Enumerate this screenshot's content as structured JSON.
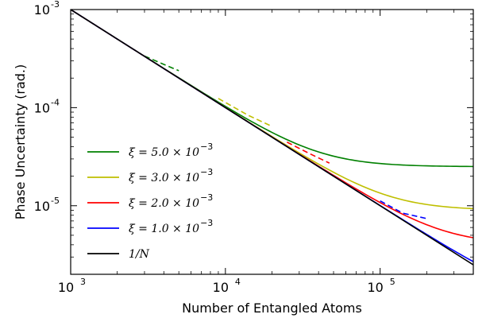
{
  "chart_data": {
    "type": "line",
    "xlabel": "Number of Entangled Atoms",
    "ylabel": "Phase Uncertainty (rad.)",
    "xscale": "log",
    "yscale": "log",
    "xlim": [
      1000,
      400000
    ],
    "ylim": [
      2e-06,
      0.001
    ],
    "x_ticks": [
      {
        "value": 1000,
        "base": "10",
        "exp": "3"
      },
      {
        "value": 10000,
        "base": "10",
        "exp": "4"
      },
      {
        "value": 100000,
        "base": "10",
        "exp": "5"
      }
    ],
    "y_ticks": [
      {
        "value": 0.001,
        "base": "10",
        "exp": "-3"
      },
      {
        "value": 0.0001,
        "base": "10",
        "exp": "-4"
      },
      {
        "value": 1e-05,
        "base": "10",
        "exp": "-5"
      }
    ],
    "grid": false,
    "legend_position": "lower-left",
    "series": [
      {
        "name": "ξ = 5.0 × 10⁻³",
        "label_main": "ξ = 5.0 × 10",
        "label_exp": "−3",
        "color": "#008000",
        "xi": 0.005,
        "x": [
          1000,
          2000,
          4000,
          8000,
          16000,
          32000,
          64000,
          128000,
          256000,
          400000
        ],
        "y": [
          0.001,
          0.00051,
          0.000276,
          0.000163,
          0.000105,
          7.19e-05,
          5.52e-05,
          4.65e-05,
          4.24e-05,
          4.1e-05
        ],
        "dashed_x": [
          3000,
          4000,
          5000
        ],
        "dashed_y": [
          0.000336,
          0.000276,
          0.000238
        ]
      },
      {
        "name": "ξ = 3.0 × 10⁻³",
        "label_main": "ξ = 3.0 × 10",
        "label_exp": "−3",
        "color": "#bfbf00",
        "xi": 0.003,
        "x": [
          1000,
          2000,
          4000,
          8000,
          16000,
          32000,
          64000,
          128000,
          256000,
          400000
        ],
        "y": [
          0.001,
          0.000504,
          0.000258,
          0.000136,
          7.43e-05,
          4.4e-05,
          2.98e-05,
          2.31e-05,
          1.98e-05,
          1.66e-05
        ],
        "dashed_x": [
          9000,
          14000,
          20000
        ],
        "dashed_y": [
          0.000124,
          8.37e-05,
          6.44e-05
        ]
      },
      {
        "name": "ξ = 2.0 × 10⁻³",
        "label_main": "ξ = 2.0 × 10",
        "label_exp": "−3",
        "color": "#ff0000",
        "xi": 0.002,
        "x": [
          1000,
          2000,
          4000,
          8000,
          16000,
          32000,
          64000,
          128000,
          256000,
          400000
        ],
        "y": [
          0.001,
          0.000502,
          0.000253,
          0.000129,
          6.67e-05,
          3.61e-05,
          2.07e-05,
          1.33e-05,
          1e-05,
          8.8e-06
        ],
        "dashed_x": [
          25000,
          35000,
          47000
        ],
        "dashed_y": [
          4.45e-05,
          3.4e-05,
          2.72e-05
        ]
      },
      {
        "name": "ξ = 1.0 × 10⁻³",
        "label_main": "ξ = 1.0 × 10",
        "label_exp": "−3",
        "color": "#0000ff",
        "xi": 0.001,
        "x": [
          1000,
          2000,
          4000,
          8000,
          16000,
          32000,
          64000,
          128000,
          256000,
          400000
        ],
        "y": [
          0.001,
          0.000501,
          0.000251,
          0.000126,
          6.35e-05,
          3.23e-05,
          1.67e-05,
          9e-06,
          5.4e-06,
          4.1e-06
        ],
        "dashed_x": [
          100000,
          140000,
          200000
        ],
        "dashed_y": [
          1.12e-05,
          8.4e-06,
          7.4e-06
        ]
      },
      {
        "name": "1/N",
        "label_main": "1/N",
        "label_exp": "",
        "color": "#000000",
        "xi": 0,
        "x": [
          1000,
          400000
        ],
        "y": [
          0.001,
          2.5e-06
        ],
        "dashed_x": [],
        "dashed_y": []
      }
    ]
  }
}
